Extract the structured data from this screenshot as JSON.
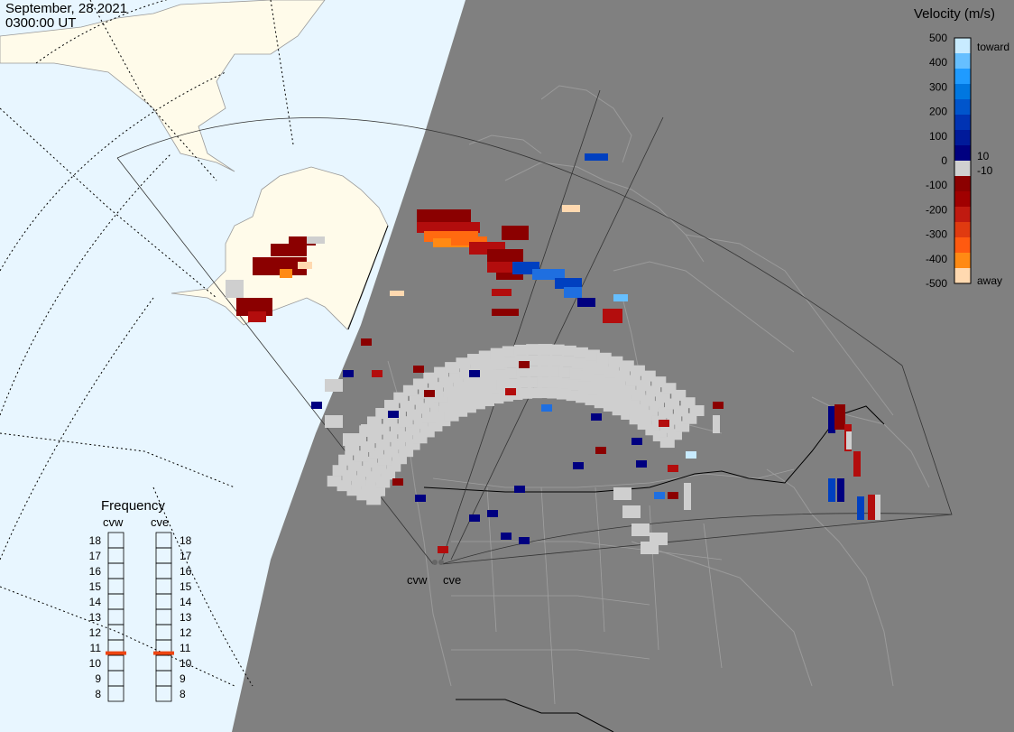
{
  "header": {
    "date": "September, 28 2021",
    "time": "0300:00 UT"
  },
  "colorbar": {
    "title": "Velocity (m/s)",
    "ticks": [
      "500",
      "400",
      "300",
      "200",
      "100",
      "0",
      "-100",
      "-200",
      "-300",
      "-400",
      "-500"
    ],
    "toward_label": "toward",
    "away_label": "away",
    "small_pos": "10",
    "small_neg": "-10",
    "colors": [
      "#ffd9b0",
      "#ff8a14",
      "#ff5a10",
      "#e03a10",
      "#c01a10",
      "#a00000",
      "#8b0000",
      "#d0d0d0",
      "#000080",
      "#001a9a",
      "#0033b3",
      "#0055cc",
      "#0077e0",
      "#1f9bff",
      "#66bfff",
      "#c8ebff"
    ]
  },
  "frequency": {
    "title": "Frequency",
    "radars": [
      "cvw",
      "cve"
    ],
    "scale": [
      "18",
      "17",
      "16",
      "15",
      "14",
      "13",
      "12",
      "11",
      "10",
      "9",
      "8"
    ],
    "values_mhz": {
      "cvw": 10.7,
      "cve": 10.7
    }
  },
  "stations": {
    "west": "cvw",
    "east": "cve"
  },
  "map_colors": {
    "ocean_day": "#e8f6ff",
    "land_day": "#fffbea",
    "night": "#808080",
    "coast_night": "#9a9a9a",
    "indicator": "#ee4411"
  }
}
